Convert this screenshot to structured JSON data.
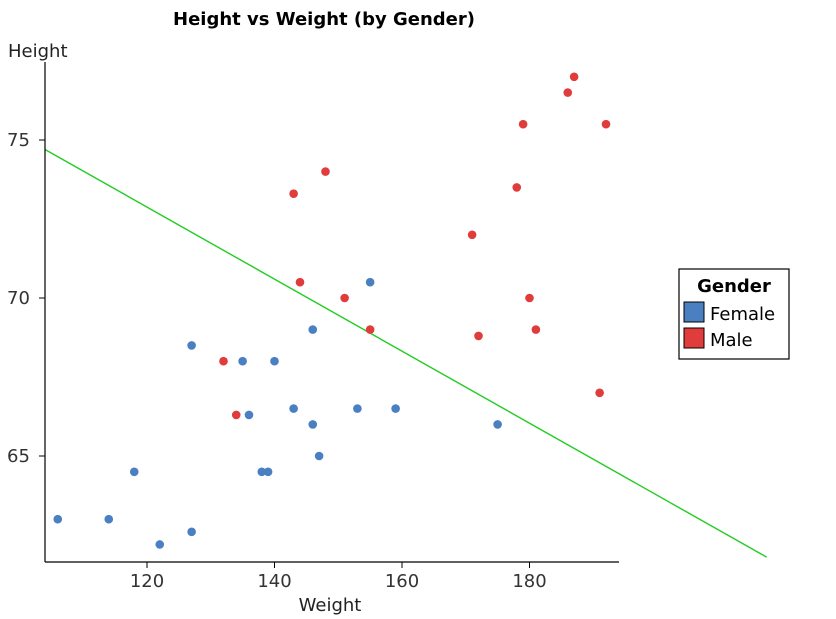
{
  "chart_data": {
    "type": "scatter",
    "title": "Height vs Weight (by Gender)",
    "xlabel": "Weight",
    "ylabel": "Height",
    "xlim": [
      104,
      195
    ],
    "ylim": [
      61.7,
      77.3
    ],
    "xticks": [
      120,
      140,
      160,
      180
    ],
    "yticks": [
      65,
      70,
      75
    ],
    "grid": false,
    "legend": {
      "title": "Gender",
      "position": "right",
      "entries": [
        "Female",
        "Male"
      ]
    },
    "series": [
      {
        "name": "Female",
        "color": "#4a7fc1",
        "points": [
          {
            "x": 106,
            "y": 63.0
          },
          {
            "x": 114,
            "y": 63.0
          },
          {
            "x": 118,
            "y": 64.5
          },
          {
            "x": 122,
            "y": 62.2
          },
          {
            "x": 127,
            "y": 62.6
          },
          {
            "x": 127,
            "y": 68.5
          },
          {
            "x": 135,
            "y": 68.0
          },
          {
            "x": 136,
            "y": 66.3
          },
          {
            "x": 138,
            "y": 64.5
          },
          {
            "x": 139,
            "y": 64.5
          },
          {
            "x": 140,
            "y": 68.0
          },
          {
            "x": 143,
            "y": 66.5
          },
          {
            "x": 146,
            "y": 69.0
          },
          {
            "x": 146,
            "y": 66.0
          },
          {
            "x": 147,
            "y": 65.0
          },
          {
            "x": 153,
            "y": 66.5
          },
          {
            "x": 155,
            "y": 70.5
          },
          {
            "x": 159,
            "y": 66.5
          },
          {
            "x": 175,
            "y": 66.0
          }
        ]
      },
      {
        "name": "Male",
        "color": "#e03c3c",
        "points": [
          {
            "x": 132,
            "y": 68.0
          },
          {
            "x": 134,
            "y": 66.3
          },
          {
            "x": 143,
            "y": 73.3
          },
          {
            "x": 144,
            "y": 70.5
          },
          {
            "x": 148,
            "y": 74.0
          },
          {
            "x": 151,
            "y": 70.0
          },
          {
            "x": 155,
            "y": 69.0
          },
          {
            "x": 171,
            "y": 72.0
          },
          {
            "x": 172,
            "y": 68.8
          },
          {
            "x": 178,
            "y": 73.5
          },
          {
            "x": 179,
            "y": 75.5
          },
          {
            "x": 180,
            "y": 70.0
          },
          {
            "x": 181,
            "y": 69.0
          },
          {
            "x": 186,
            "y": 76.5
          },
          {
            "x": 187,
            "y": 77.0
          },
          {
            "x": 191,
            "y": 67.0
          },
          {
            "x": 192,
            "y": 75.5
          }
        ]
      }
    ],
    "trend_line": {
      "color": "#22cc22",
      "from": {
        "x": 104,
        "y": 74.7
      },
      "to": {
        "x": 217.2,
        "y": 61.8
      }
    }
  }
}
